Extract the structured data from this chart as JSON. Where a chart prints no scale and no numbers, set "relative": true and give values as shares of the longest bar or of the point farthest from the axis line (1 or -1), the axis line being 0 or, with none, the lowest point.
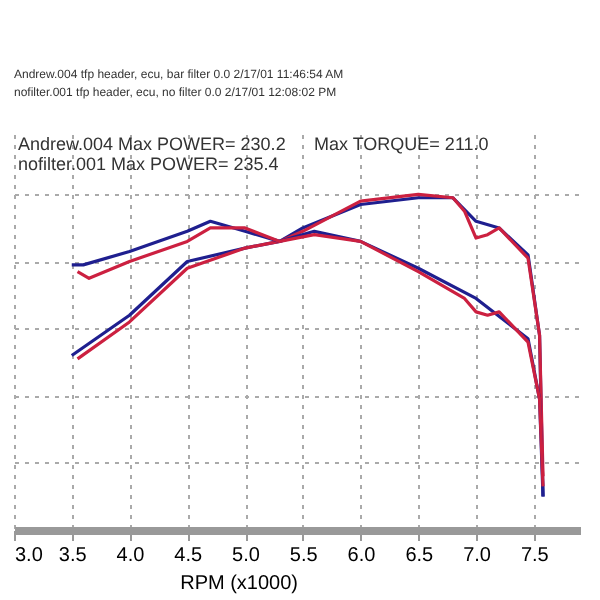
{
  "chart_data": {
    "type": "line",
    "relative": true,
    "xlabel": "RPM (x1000)",
    "annotations": [
      "Andrew.004  tfp header, ecu, bar filter 0.0  2/17/01 11:46:54 AM",
      "nofilter.001  tfp header, ecu, no filter  0.0  2/17/01 12:08:02 PM",
      "Andrew.004  Max POWER= 230.2",
      "nofilter.001  Max POWER= 235.4",
      "Max TORQUE= 211.0"
    ],
    "xlim": [
      3.0,
      7.9
    ],
    "xticks": [
      {
        "value": 3,
        "label": "3.0"
      },
      3.5,
      {
        "value": 4,
        "label": "4.0"
      },
      4.5,
      {
        "value": 5,
        "label": "5.0"
      },
      5.5,
      {
        "value": 6,
        "label": "6.0"
      },
      6.5,
      {
        "value": 7,
        "label": "7.0"
      },
      7.5
    ],
    "grid": true,
    "line_style": "solid",
    "marker": "none",
    "series": [
      {
        "color": "#1f1f8f",
        "x": [
          3.5,
          4.0,
          4.5,
          5.0,
          5.3,
          5.5,
          6.0,
          6.5,
          6.8,
          7.0,
          7.2,
          7.45,
          7.55,
          7.58
        ],
        "values": [
          0.52,
          0.64,
          0.8,
          0.84,
          0.86,
          0.9,
          0.97,
          0.99,
          0.99,
          0.92,
          0.9,
          0.82,
          0.58,
          0.1
        ]
      },
      {
        "color": "#cc2040",
        "x": [
          3.55,
          4.0,
          4.5,
          5.0,
          5.3,
          5.5,
          6.0,
          6.5,
          6.8,
          6.9,
          7.0,
          7.1,
          7.2,
          7.45,
          7.55,
          7.58
        ],
        "values": [
          0.51,
          0.62,
          0.78,
          0.84,
          0.86,
          0.89,
          0.98,
          1,
          0.99,
          0.95,
          0.87,
          0.88,
          0.9,
          0.81,
          0.58,
          0.16
        ]
      },
      {
        "color": "#1f1f8f",
        "x": [
          3.5,
          3.6,
          4.0,
          4.5,
          4.7,
          5.0,
          5.3,
          5.6,
          6.0,
          6.5,
          7.0,
          7.45,
          7.55,
          7.58
        ],
        "values": [
          0.79,
          0.79,
          0.83,
          0.89,
          0.92,
          0.89,
          0.86,
          0.89,
          0.86,
          0.78,
          0.69,
          0.57,
          0.39,
          0.1
        ]
      },
      {
        "color": "#cc2040",
        "x": [
          3.55,
          3.65,
          4.0,
          4.5,
          4.7,
          5.0,
          5.3,
          5.6,
          6.0,
          6.5,
          6.9,
          7.0,
          7.1,
          7.2,
          7.45,
          7.55,
          7.58
        ],
        "values": [
          0.77,
          0.75,
          0.8,
          0.86,
          0.9,
          0.9,
          0.86,
          0.88,
          0.86,
          0.77,
          0.69,
          0.65,
          0.64,
          0.65,
          0.56,
          0.39,
          0.13
        ]
      }
    ]
  }
}
